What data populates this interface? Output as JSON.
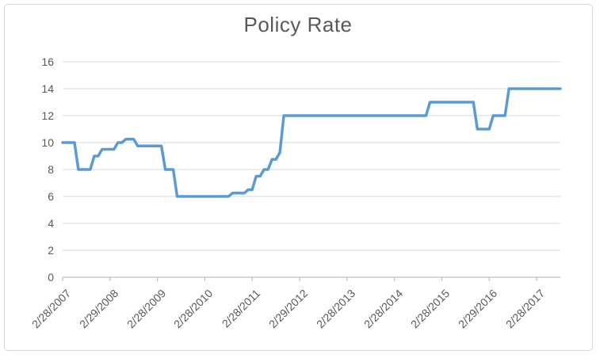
{
  "colors": {
    "line": "#5B9BD5",
    "gridline": "#D9D9D9",
    "axis": "#BFBFBF",
    "text": "#595959",
    "border": "#D9D9D9",
    "background": "#FFFFFF"
  },
  "chart_data": {
    "type": "line",
    "title": "Policy Rate",
    "xlabel": "",
    "ylabel": "",
    "ylim": [
      0,
      16
    ],
    "y_ticks": [
      0,
      2,
      4,
      6,
      8,
      10,
      12,
      14,
      16
    ],
    "grid": "horizontal",
    "legend": "none",
    "x_start": "2/28/2007",
    "x_end": "8/31/2017",
    "frequency": "monthly",
    "x_tick_interval_months": 12,
    "x_tick_labels": [
      "2/28/2007",
      "2/29/2008",
      "2/28/2009",
      "2/28/2010",
      "2/28/2011",
      "2/29/2012",
      "2/28/2013",
      "2/28/2014",
      "2/28/2015",
      "2/29/2016",
      "2/28/2017"
    ],
    "series": [
      {
        "name": "Policy Rate",
        "color": "#5B9BD5",
        "values": [
          10,
          10,
          10,
          10,
          8,
          8,
          8,
          8,
          9,
          9,
          9.5,
          9.5,
          9.5,
          9.5,
          10,
          10,
          10.25,
          10.25,
          10.25,
          9.75,
          9.75,
          9.75,
          9.75,
          9.75,
          9.75,
          9.75,
          8,
          8,
          8,
          6,
          6,
          6,
          6,
          6,
          6,
          6,
          6,
          6,
          6,
          6,
          6,
          6,
          6,
          6.25,
          6.25,
          6.25,
          6.25,
          6.5,
          6.5,
          7.5,
          7.5,
          8,
          8,
          8.75,
          8.75,
          9.25,
          12,
          12,
          12,
          12,
          12,
          12,
          12,
          12,
          12,
          12,
          12,
          12,
          12,
          12,
          12,
          12,
          12,
          12,
          12,
          12,
          12,
          12,
          12,
          12,
          12,
          12,
          12,
          12,
          12,
          12,
          12,
          12,
          12,
          12,
          12,
          12,
          12,
          13,
          13,
          13,
          13,
          13,
          13,
          13,
          13,
          13,
          13,
          13,
          13,
          11,
          11,
          11,
          11,
          12,
          12,
          12,
          12,
          14,
          14,
          14,
          14,
          14,
          14,
          14,
          14,
          14,
          14,
          14,
          14,
          14,
          14
        ]
      }
    ]
  }
}
